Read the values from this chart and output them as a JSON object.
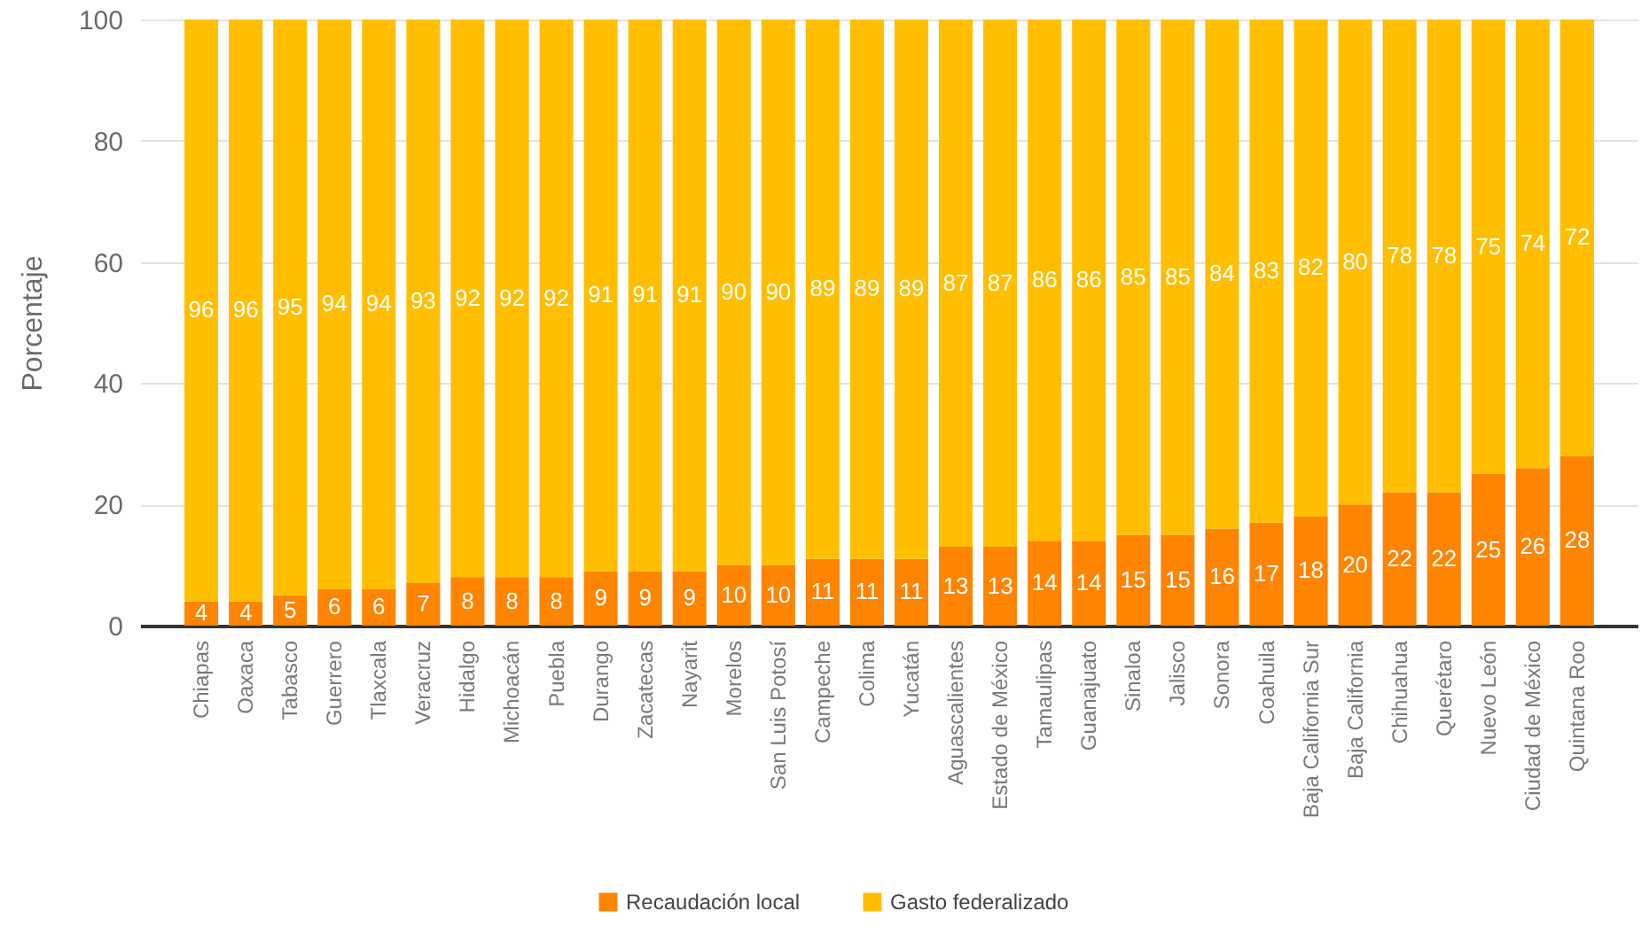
{
  "chart_data": {
    "type": "bar",
    "stacked": true,
    "ylabel": "Porcentaje",
    "categories": [
      "Chiapas",
      "Oaxaca",
      "Tabasco",
      "Guerrero",
      "Tlaxcala",
      "Veracruz",
      "Hidalgo",
      "Michoacán",
      "Puebla",
      "Durango",
      "Zacatecas",
      "Nayarit",
      "Morelos",
      "San Luis Potosí",
      "Campeche",
      "Colima",
      "Yucatán",
      "Aguascalientes",
      "Estado de México",
      "Tamaulipas",
      "Guanajuato",
      "Sinaloa",
      "Jalisco",
      "Sonora",
      "Coahuila",
      "Baja California Sur",
      "Baja California",
      "Chihuahua",
      "Querétaro",
      "Nuevo León",
      "Ciudad de México",
      "Quintana Roo"
    ],
    "series": [
      {
        "name": "Recaudación local",
        "color": "#ff8400",
        "values": [
          4,
          4,
          5,
          6,
          6,
          7,
          8,
          8,
          8,
          9,
          9,
          9,
          10,
          10,
          11,
          11,
          11,
          13,
          13,
          14,
          14,
          15,
          15,
          16,
          17,
          18,
          20,
          22,
          22,
          25,
          26,
          28
        ]
      },
      {
        "name": "Gasto federalizado",
        "color": "#ffbf00",
        "values": [
          96,
          96,
          95,
          94,
          94,
          93,
          92,
          92,
          92,
          91,
          91,
          91,
          90,
          90,
          89,
          89,
          89,
          87,
          87,
          86,
          86,
          85,
          85,
          84,
          83,
          82,
          80,
          78,
          78,
          75,
          74,
          72
        ]
      }
    ],
    "ylim": [
      0,
      100
    ],
    "yticks": [
      0,
      20,
      40,
      60,
      80,
      100
    ],
    "grid": "y",
    "legend": "bottom",
    "data_labels": true
  }
}
